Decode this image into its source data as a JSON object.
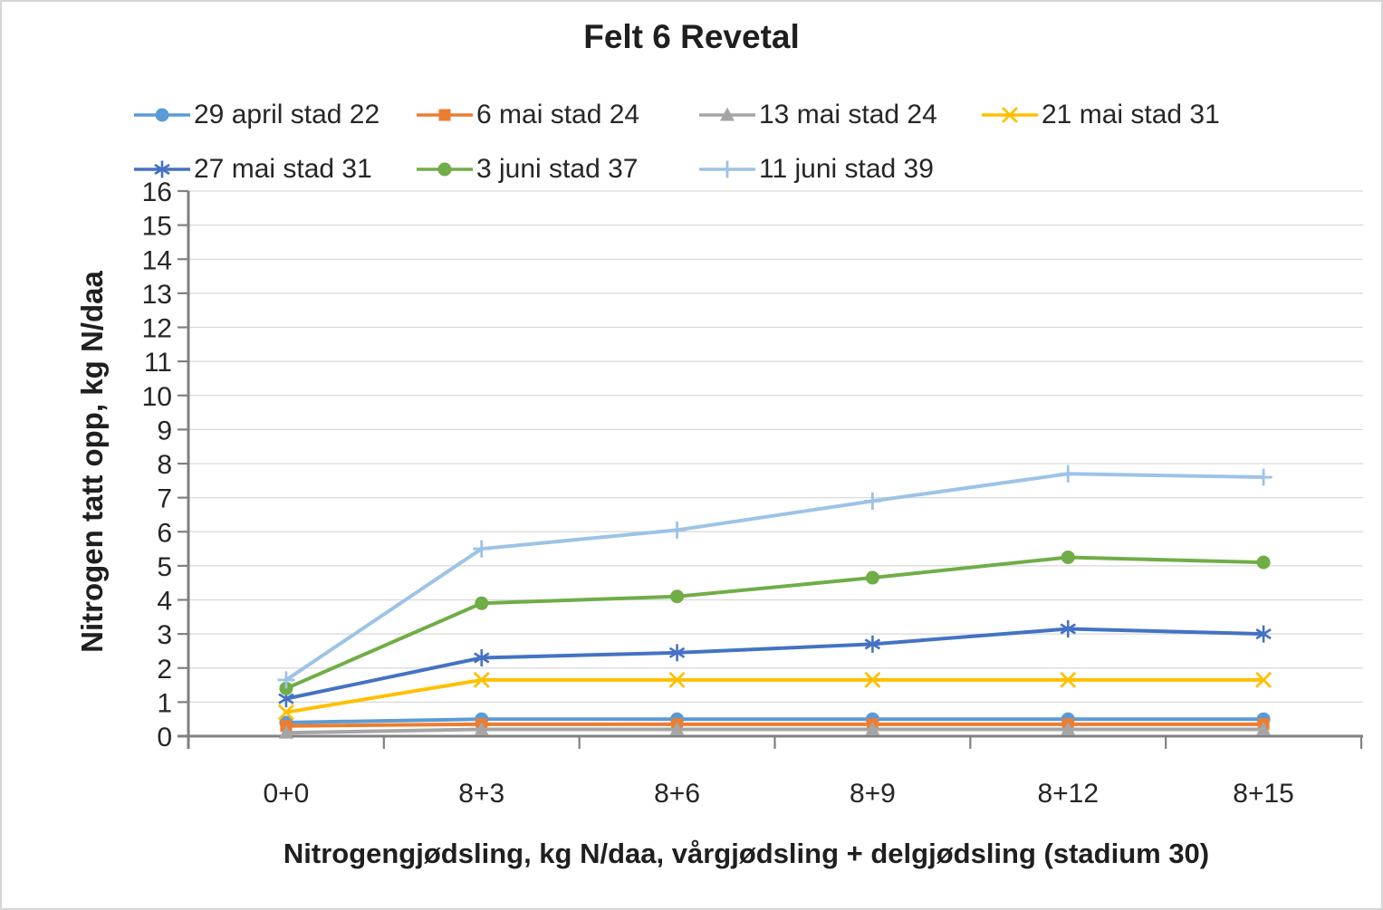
{
  "chart_data": {
    "type": "line",
    "title": "Felt 6 Revetal",
    "xlabel": "Nitrogengjødsling, kg N/daa, vårgjødsling + delgjødsling (stadium 30)",
    "ylabel": "Nitrogen tatt opp, kg N/daa",
    "categories": [
      "0+0",
      "8+3",
      "8+6",
      "8+9",
      "8+12",
      "8+15"
    ],
    "ylim": [
      0,
      16
    ],
    "yticks": [
      0,
      1,
      2,
      3,
      4,
      5,
      6,
      7,
      8,
      9,
      10,
      11,
      12,
      13,
      14,
      15,
      16
    ],
    "grid": "horizontal",
    "legend_position": "top",
    "series": [
      {
        "name": "29 april stad 22",
        "color": "#5B9BD5",
        "marker": "circle",
        "values": [
          0.4,
          0.5,
          0.5,
          0.5,
          0.5,
          0.5
        ]
      },
      {
        "name": "6 mai stad 24",
        "color": "#ED7D31",
        "marker": "square",
        "values": [
          0.3,
          0.35,
          0.35,
          0.35,
          0.35,
          0.35
        ]
      },
      {
        "name": "13 mai stad 24",
        "color": "#A5A5A5",
        "marker": "triangle",
        "values": [
          0.1,
          0.2,
          0.2,
          0.2,
          0.2,
          0.2
        ]
      },
      {
        "name": "21 mai stad 31",
        "color": "#FFC000",
        "marker": "x",
        "values": [
          0.7,
          1.65,
          1.65,
          1.65,
          1.65,
          1.65
        ]
      },
      {
        "name": "27 mai stad 31",
        "color": "#4472C4",
        "marker": "asterisk",
        "values": [
          1.1,
          2.3,
          2.45,
          2.7,
          3.15,
          3.0
        ]
      },
      {
        "name": "3 juni stad 37",
        "color": "#70AD47",
        "marker": "circle",
        "values": [
          1.4,
          3.9,
          4.1,
          4.65,
          5.25,
          5.1
        ]
      },
      {
        "name": "11 juni stad 39",
        "color": "#9DC3E6",
        "marker": "plus",
        "values": [
          1.65,
          5.5,
          6.05,
          6.9,
          7.7,
          7.6
        ]
      }
    ],
    "axis_color": "#808080",
    "gridline_color": "#D9D9D9",
    "text_color": "#262626"
  }
}
